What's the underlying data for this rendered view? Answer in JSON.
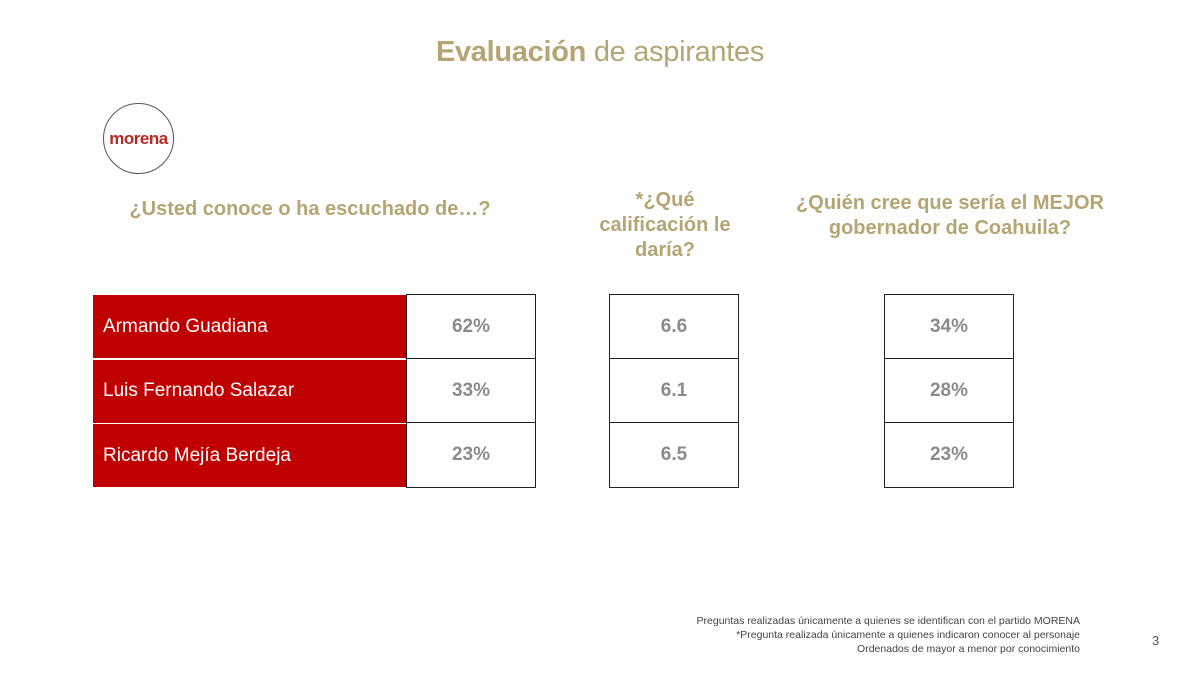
{
  "title": {
    "bold": "Evaluación",
    "rest": " de aspirantes"
  },
  "logo": {
    "text": "morena",
    "color": "#b32a25"
  },
  "questions": {
    "known": "¿Usted conoce o ha escuchado de…?",
    "rating": "*¿Qué calificación le daría?",
    "best": "¿Quién cree que sería el MEJOR gobernador de Coahuila?"
  },
  "candidates": [
    {
      "name": "Armando Guadiana",
      "known": "62%",
      "rating": "6.6",
      "best": "34%"
    },
    {
      "name": "Luis Fernando Salazar",
      "known": "33%",
      "rating": "6.1",
      "best": "28%"
    },
    {
      "name": "Ricardo Mejía Berdeja",
      "known": "23%",
      "rating": "6.5",
      "best": "23%"
    }
  ],
  "notes": [
    "Preguntas realizadas únicamente a quienes se identifican con el partido MORENA",
    "*Pregunta realizada únicamente a quienes indicaron conocer al personaje",
    "Ordenados de mayor a menor por conocimiento"
  ],
  "page_number": "3",
  "colors": {
    "accent_gold": "#b5a573",
    "name_red": "#c00000",
    "value_gray": "#888c90"
  }
}
